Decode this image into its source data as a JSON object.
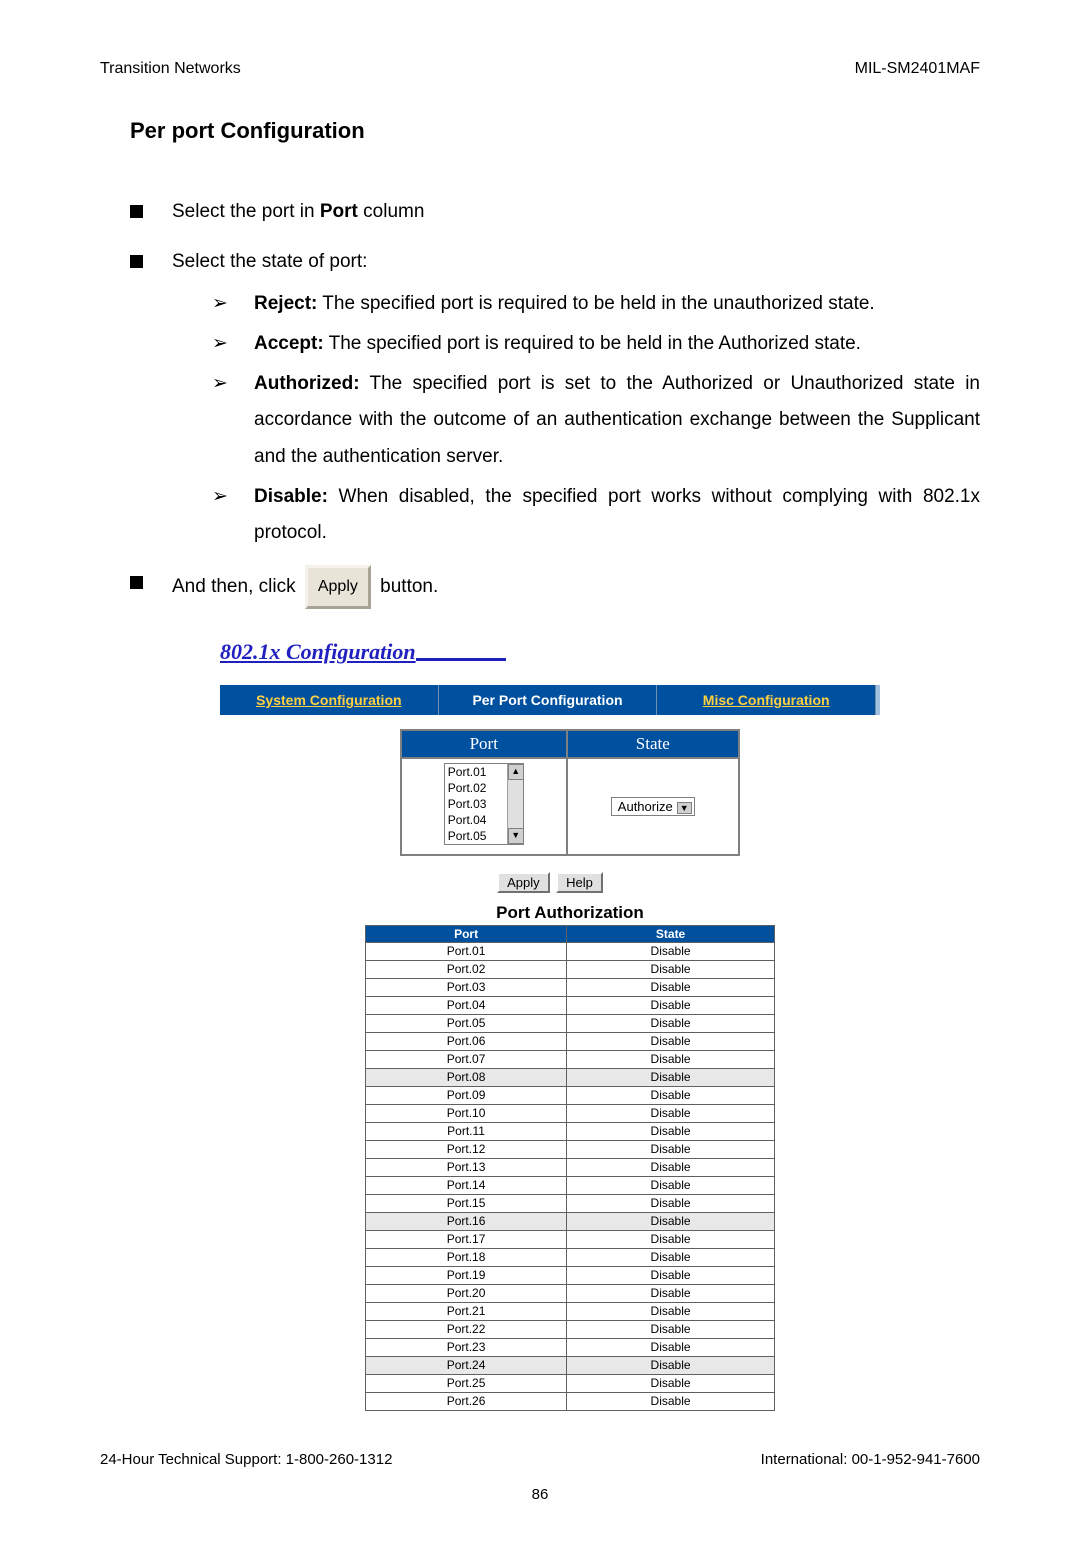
{
  "header": {
    "left": "Transition Networks",
    "right": "MIL-SM2401MAF"
  },
  "section_title": "Per port Configuration",
  "bullets": {
    "b1_prefix": "Select the port in ",
    "b1_bold": "Port",
    "b1_suffix": " column",
    "b2": "Select the state of port:",
    "sub": {
      "reject_label": "Reject:",
      "reject_text": " The specified port is required to be held in the unauthorized state.",
      "accept_label": "Accept:",
      "accept_text": " The specified port is required to be held in the Authorized state.",
      "auth_label": "Authorized:",
      "auth_text": " The specified port is set to the Authorized or Unauthorized state in accordance with the outcome of an authentication exchange between the Supplicant and the authentication server.",
      "disable_label": "Disable:",
      "disable_text": " When disabled, the specified port works without complying with 802.1x protocol."
    },
    "b3_prefix": "And then, click ",
    "b3_btn": "Apply",
    "b3_suffix": "  button."
  },
  "screenshot": {
    "heading": "802.1x Configuration",
    "tabs": {
      "sys": "System Configuration",
      "per": "Per Port Configuration",
      "misc": "Misc Configuration"
    },
    "port_state": {
      "port_header": "Port",
      "state_header": "State",
      "options": [
        "Port.01",
        "Port.02",
        "Port.03",
        "Port.04",
        "Port.05"
      ],
      "state_value": "Authorize"
    },
    "buttons": {
      "apply": "Apply",
      "help": "Help"
    },
    "auth_title": "Port Authorization",
    "auth_headers": {
      "port": "Port",
      "state": "State"
    },
    "auth_rows": [
      {
        "port": "Port.01",
        "state": "Disable",
        "shade": false
      },
      {
        "port": "Port.02",
        "state": "Disable",
        "shade": false
      },
      {
        "port": "Port.03",
        "state": "Disable",
        "shade": false
      },
      {
        "port": "Port.04",
        "state": "Disable",
        "shade": false
      },
      {
        "port": "Port.05",
        "state": "Disable",
        "shade": false
      },
      {
        "port": "Port.06",
        "state": "Disable",
        "shade": false
      },
      {
        "port": "Port.07",
        "state": "Disable",
        "shade": false
      },
      {
        "port": "Port.08",
        "state": "Disable",
        "shade": true
      },
      {
        "port": "Port.09",
        "state": "Disable",
        "shade": false
      },
      {
        "port": "Port.10",
        "state": "Disable",
        "shade": false
      },
      {
        "port": "Port.11",
        "state": "Disable",
        "shade": false
      },
      {
        "port": "Port.12",
        "state": "Disable",
        "shade": false
      },
      {
        "port": "Port.13",
        "state": "Disable",
        "shade": false
      },
      {
        "port": "Port.14",
        "state": "Disable",
        "shade": false
      },
      {
        "port": "Port.15",
        "state": "Disable",
        "shade": false
      },
      {
        "port": "Port.16",
        "state": "Disable",
        "shade": true
      },
      {
        "port": "Port.17",
        "state": "Disable",
        "shade": false
      },
      {
        "port": "Port.18",
        "state": "Disable",
        "shade": false
      },
      {
        "port": "Port.19",
        "state": "Disable",
        "shade": false
      },
      {
        "port": "Port.20",
        "state": "Disable",
        "shade": false
      },
      {
        "port": "Port.21",
        "state": "Disable",
        "shade": false
      },
      {
        "port": "Port.22",
        "state": "Disable",
        "shade": false
      },
      {
        "port": "Port.23",
        "state": "Disable",
        "shade": false
      },
      {
        "port": "Port.24",
        "state": "Disable",
        "shade": true
      },
      {
        "port": "Port.25",
        "state": "Disable",
        "shade": false
      },
      {
        "port": "Port.26",
        "state": "Disable",
        "shade": false
      }
    ]
  },
  "footer": {
    "left": "24-Hour Technical Support: 1-800-260-1312",
    "right": "International: 00-1-952-941-7600",
    "page": "86"
  }
}
